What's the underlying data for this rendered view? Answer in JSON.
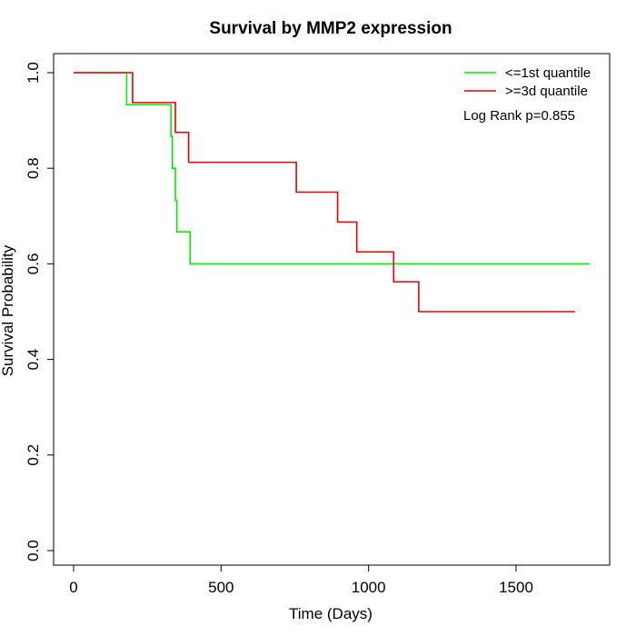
{
  "chart_data": {
    "type": "line",
    "step": true,
    "title": "Survival by MMP2 expression",
    "xlabel": "Time (Days)",
    "ylabel": "Survival Probability",
    "xlim": [
      0,
      1750
    ],
    "ylim": [
      0,
      1
    ],
    "xticks": [
      0,
      500,
      1000,
      1500
    ],
    "xtick_labels": [
      "0",
      "500",
      "1000",
      "1500"
    ],
    "yticks": [
      0,
      0.2,
      0.4,
      0.6,
      0.8,
      1
    ],
    "ytick_labels": [
      "0.0",
      "0.2",
      "0.4",
      "0.6",
      "0.8",
      "1.0"
    ],
    "grid": false,
    "legend_position": "top-right",
    "annotation": "Log Rank p=0.855",
    "series": [
      {
        "name": "<=1st quantile",
        "color": "#00ee00",
        "x": [
          0,
          180,
          180,
          330,
          330,
          335,
          335,
          345,
          345,
          350,
          350,
          395,
          395,
          1750
        ],
        "y": [
          1.0,
          1.0,
          0.933,
          0.933,
          0.867,
          0.867,
          0.8,
          0.8,
          0.733,
          0.733,
          0.667,
          0.667,
          0.6,
          0.6
        ]
      },
      {
        "name": ">=3d quantile",
        "color": "#ee0000",
        "x": [
          0,
          200,
          200,
          345,
          345,
          390,
          390,
          755,
          755,
          895,
          895,
          960,
          960,
          1085,
          1085,
          1170,
          1170,
          1700
        ],
        "y": [
          1.0,
          1.0,
          0.9375,
          0.9375,
          0.875,
          0.875,
          0.8125,
          0.8125,
          0.75,
          0.75,
          0.6875,
          0.6875,
          0.625,
          0.625,
          0.5625,
          0.5625,
          0.5,
          0.5
        ]
      }
    ]
  }
}
